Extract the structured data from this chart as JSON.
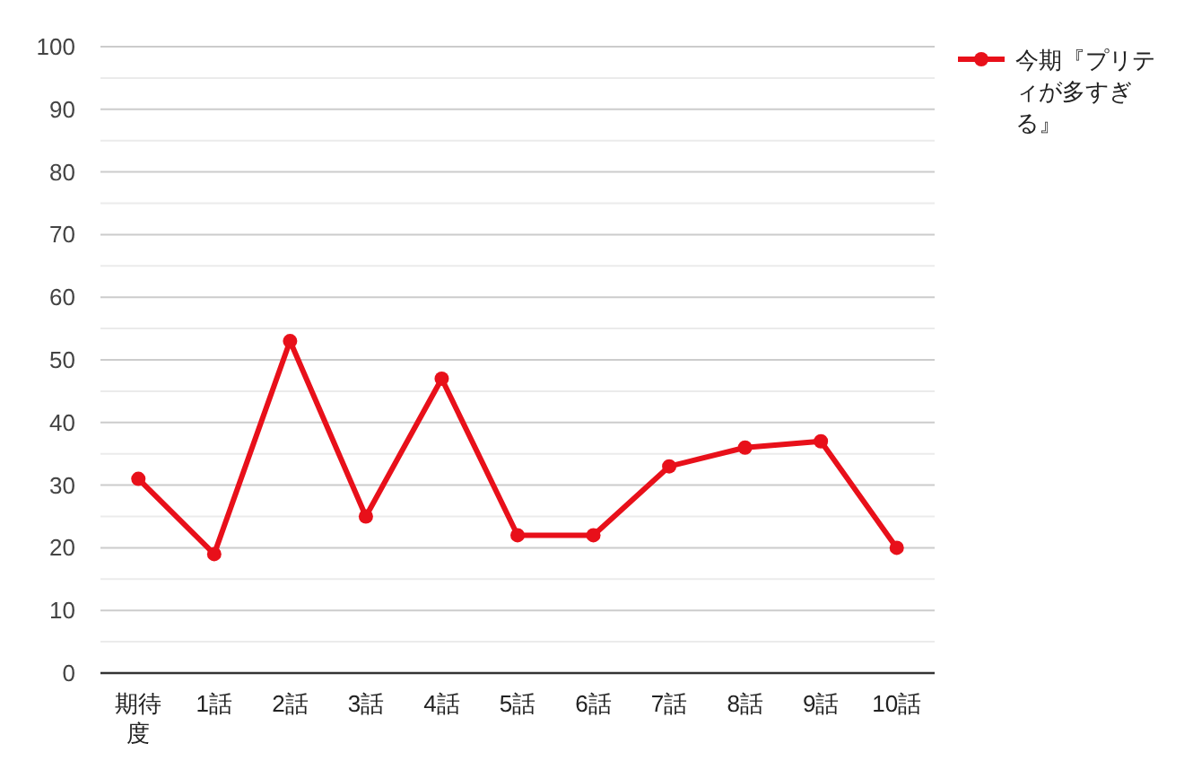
{
  "chart_data": {
    "type": "line",
    "categories": [
      "期待度",
      "1話",
      "2話",
      "3話",
      "4話",
      "5話",
      "6話",
      "7話",
      "8話",
      "9話",
      "10話"
    ],
    "series": [
      {
        "name": "今期『プリティが多すぎる』",
        "color": "#e8101a",
        "values": [
          31,
          19,
          53,
          25,
          47,
          22,
          22,
          33,
          36,
          37,
          20
        ]
      }
    ],
    "ylim": [
      0,
      100
    ],
    "yticks": [
      0,
      {
        "value": 5,
        "label": null
      },
      10,
      {
        "value": 15,
        "label": null
      },
      20,
      {
        "value": 25,
        "label": null
      },
      30,
      {
        "value": 35,
        "label": null
      },
      40,
      {
        "value": 45,
        "label": null
      },
      50,
      {
        "value": 55,
        "label": null
      },
      60,
      {
        "value": 65,
        "label": null
      },
      70,
      {
        "value": 75,
        "label": null
      },
      80,
      {
        "value": 85,
        "label": null
      },
      90,
      {
        "value": 95,
        "label": null
      },
      100
    ],
    "grid": "y",
    "legend": "top right",
    "marker": "circle",
    "line_style": "solid"
  }
}
